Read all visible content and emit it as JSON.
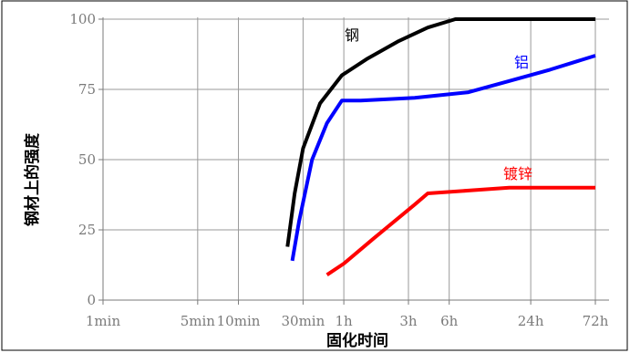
{
  "chart_data": {
    "type": "line",
    "title": "",
    "xlabel": "固化时间",
    "ylabel": "钢材上的强度",
    "x_scale": "log",
    "x_unit": "min",
    "xlim": [
      1,
      4320
    ],
    "ylim": [
      0,
      100
    ],
    "x_ticks": [
      {
        "value": 1,
        "label": "1min"
      },
      {
        "value": 5,
        "label": "5min"
      },
      {
        "value": 10,
        "label": "10min"
      },
      {
        "value": 30,
        "label": "30min"
      },
      {
        "value": 60,
        "label": "1h"
      },
      {
        "value": 180,
        "label": "3h"
      },
      {
        "value": 360,
        "label": "6h"
      },
      {
        "value": 1440,
        "label": "24h"
      },
      {
        "value": 4320,
        "label": "72h"
      }
    ],
    "y_ticks": [
      {
        "value": 0,
        "label": "0"
      },
      {
        "value": 25,
        "label": "25"
      },
      {
        "value": 50,
        "label": "50"
      },
      {
        "value": 75,
        "label": "75"
      },
      {
        "value": 100,
        "label": "100"
      }
    ],
    "grid": true,
    "legend": "none",
    "series": [
      {
        "name": "钢",
        "color": "#000000",
        "points": [
          [
            23,
            19
          ],
          [
            26,
            38
          ],
          [
            30,
            54
          ],
          [
            40,
            70
          ],
          [
            58,
            80
          ],
          [
            90,
            86
          ],
          [
            150,
            92
          ],
          [
            250,
            97
          ],
          [
            400,
            100
          ],
          [
            4320,
            100
          ]
        ]
      },
      {
        "name": "铝",
        "color": "#0000ff",
        "points": [
          [
            25,
            14
          ],
          [
            28,
            28
          ],
          [
            35,
            50
          ],
          [
            45,
            63
          ],
          [
            58,
            71
          ],
          [
            80,
            71
          ],
          [
            200,
            72
          ],
          [
            500,
            74
          ],
          [
            1000,
            78
          ],
          [
            2000,
            82
          ],
          [
            4320,
            87
          ]
        ]
      },
      {
        "name": "镀锌",
        "color": "#ff0000",
        "points": [
          [
            45,
            9
          ],
          [
            60,
            13
          ],
          [
            100,
            22
          ],
          [
            200,
            34
          ],
          [
            250,
            38
          ],
          [
            500,
            39
          ],
          [
            1000,
            40
          ],
          [
            2000,
            40
          ],
          [
            4320,
            40
          ]
        ]
      }
    ]
  }
}
